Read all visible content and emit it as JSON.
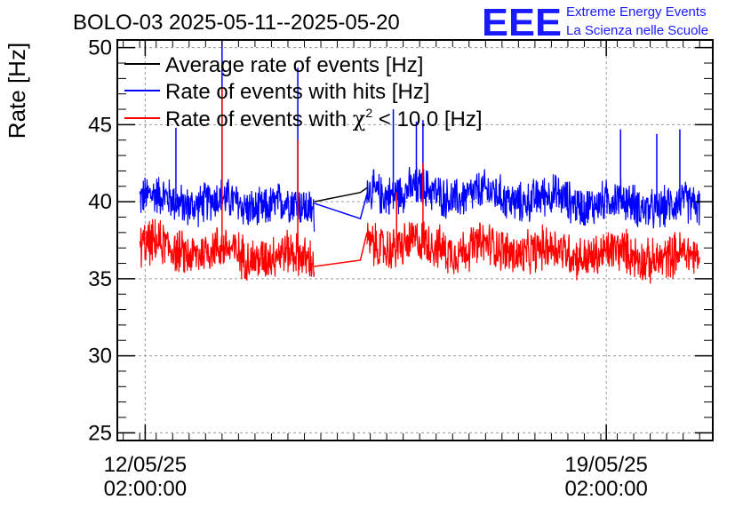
{
  "header": {
    "title": "BOLO-03 2025-05-11--2025-05-20",
    "logo_text": "EEE",
    "org_line1": "Extreme Energy Events",
    "org_line2": "La Scienza nelle Scuole"
  },
  "colors": {
    "average": "#000000",
    "hits": "#0000ff",
    "chi2": "#ff0000",
    "logo": "#1a1aff"
  },
  "chart_data": {
    "type": "line",
    "ylabel": "Rate [Hz]",
    "xlabel": "",
    "ylim": [
      24.5,
      50.5
    ],
    "yticks": [
      25,
      30,
      35,
      40,
      45,
      50
    ],
    "grid": true,
    "legend_position": "top-left",
    "x_unit": "days since 2025-05-11 00:00",
    "xlim": [
      0.66,
      9.7
    ],
    "xticks": [
      {
        "x": 1.0833,
        "line1": "12/05/25",
        "line2": "02:00:00"
      },
      {
        "x": 8.0833,
        "line1": "19/05/25",
        "line2": "02:00:00"
      }
    ],
    "series": [
      {
        "name": "Average rate of events [Hz]",
        "color": "#000000",
        "points": [
          [
            3.65,
            40.0
          ],
          [
            4.35,
            40.6
          ],
          [
            4.45,
            40.9
          ]
        ]
      },
      {
        "name": "Rate of events with hits [Hz]",
        "color": "#0000ff",
        "segments": [
          {
            "x_start": 1.0,
            "x_end": 3.65,
            "mean": 39.9,
            "noise": 1.2,
            "trend": -0.3
          },
          {
            "x_start": 4.45,
            "x_end": 9.5,
            "mean": 40.2,
            "noise": 1.2,
            "trend": -0.6
          }
        ],
        "gap_links": [
          [
            3.65,
            39.9
          ],
          [
            4.35,
            38.9
          ],
          [
            4.45,
            40.5
          ]
        ],
        "spikes": [
          {
            "x": 1.55,
            "y": 44.8
          },
          {
            "x": 2.25,
            "y": 50.5
          },
          {
            "x": 3.4,
            "y": 48.7
          },
          {
            "x": 4.85,
            "y": 46.0
          },
          {
            "x": 5.2,
            "y": 45.2
          },
          {
            "x": 5.3,
            "y": 45.3
          },
          {
            "x": 8.3,
            "y": 44.7
          },
          {
            "x": 8.85,
            "y": 44.4
          },
          {
            "x": 9.2,
            "y": 44.7
          }
        ]
      },
      {
        "name": "Rate of events with χ² < 10.0 [Hz]",
        "color": "#ff0000",
        "segments": [
          {
            "x_start": 1.0,
            "x_end": 3.65,
            "mean": 36.7,
            "noise": 1.3,
            "trend": -0.4
          },
          {
            "x_start": 4.45,
            "x_end": 9.5,
            "mean": 36.8,
            "noise": 1.3,
            "trend": -0.5
          }
        ],
        "gap_links": [
          [
            3.65,
            35.8
          ],
          [
            4.35,
            36.2
          ],
          [
            4.45,
            38.0
          ]
        ],
        "spikes": [
          {
            "x": 2.25,
            "y": 47.4
          },
          {
            "x": 3.4,
            "y": 44.0
          },
          {
            "x": 4.9,
            "y": 40.6
          },
          {
            "x": 5.3,
            "y": 42.5
          }
        ]
      }
    ]
  },
  "legend": {
    "items": [
      {
        "pre": "Average rate of events [Hz]",
        "sym": "",
        "sup": "",
        "post": ""
      },
      {
        "pre": "Rate of events with hits [Hz]",
        "sym": "",
        "sup": "",
        "post": ""
      },
      {
        "pre": "Rate of events with ",
        "sym": "χ",
        "sup": "2",
        "post": " < 10.0 [Hz]"
      }
    ]
  }
}
